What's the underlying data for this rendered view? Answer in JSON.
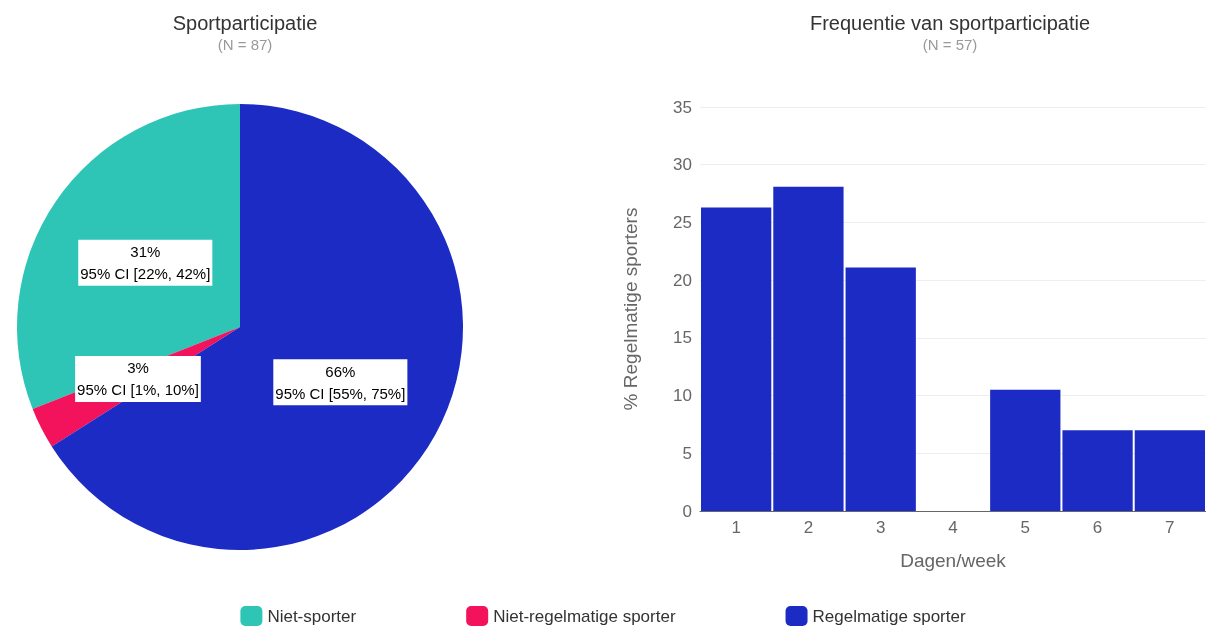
{
  "chart_data": [
    {
      "type": "pie",
      "title": "Sportparticipatie",
      "subtitle": "(N = 87)",
      "categories": [
        "Niet-sporter",
        "Niet-regelmatige sporter",
        "Regelmatige sporter"
      ],
      "values": [
        31,
        3,
        66
      ],
      "colors": [
        "#2ec4b6",
        "#f2135c",
        "#1b2bc4"
      ],
      "value_labels": [
        "31%\n95% CI [22%, 42%]",
        "3%\n95% CI [1%, 10%]",
        "66%\n95% CI [55%, 75%]"
      ],
      "legend": "bottom"
    },
    {
      "type": "bar",
      "title": "Frequentie van sportparticipatie",
      "subtitle": "(N = 57)",
      "xlabel": "Dagen/week",
      "ylabel": "% Regelmatige sporters",
      "categories": [
        "1",
        "2",
        "3",
        "4",
        "5",
        "6",
        "7"
      ],
      "values": [
        26.3,
        28.1,
        21.1,
        0,
        10.5,
        7.0,
        7.0
      ],
      "color": "#1b2bc4",
      "ylim": [
        0,
        35
      ],
      "yticks": [
        0,
        5,
        10,
        15,
        20,
        25,
        30,
        35
      ],
      "grid": "y",
      "legend": false
    }
  ]
}
